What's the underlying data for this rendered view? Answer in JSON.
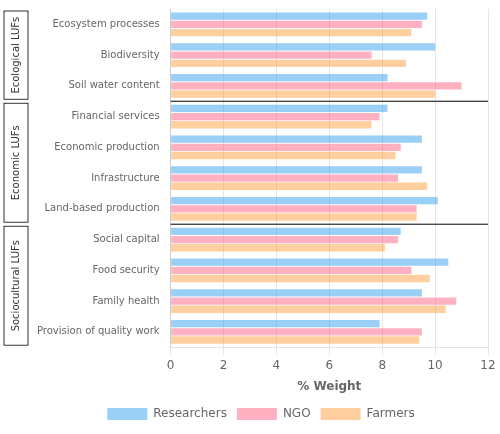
{
  "chart_data": {
    "type": "bar",
    "orientation": "horizontal",
    "categories": [
      "Ecosystem processes",
      "Biodiversity",
      "Soil water content",
      "Financial services",
      "Economic production",
      "Infrastructure",
      "Land-based production",
      "Social capital",
      "Food security",
      "Family health",
      "Provision of quality work"
    ],
    "series": [
      {
        "name": "Researchers",
        "values": [
          9.7,
          10.0,
          8.2,
          8.2,
          9.5,
          9.5,
          10.1,
          8.7,
          10.5,
          9.5,
          7.9
        ]
      },
      {
        "name": "NGO",
        "values": [
          9.5,
          7.6,
          11.0,
          7.9,
          8.7,
          8.6,
          9.3,
          8.6,
          9.1,
          10.8,
          9.5
        ]
      },
      {
        "name": "Farmers",
        "values": [
          9.1,
          8.9,
          10.0,
          7.6,
          8.5,
          9.7,
          9.3,
          8.1,
          9.8,
          10.4,
          9.4
        ]
      }
    ],
    "xlabel": "% Weight",
    "xlim": [
      0,
      12
    ],
    "xticks": [
      0,
      2,
      4,
      6,
      8,
      10,
      12
    ],
    "grid": true,
    "legend": "bottom",
    "annotations": [
      {
        "text": "Ecological LUFs",
        "categories": [
          "Ecosystem processes",
          "Biodiversity",
          "Soil water content"
        ]
      },
      {
        "text": "Economic LUFs",
        "categories": [
          "Financial services",
          "Economic production",
          "Infrastructure",
          "Land-based production"
        ]
      },
      {
        "text": "Sociocultural LUFs",
        "categories": [
          "Social capital",
          "Food security",
          "Family health",
          "Provision of quality work"
        ]
      }
    ]
  }
}
